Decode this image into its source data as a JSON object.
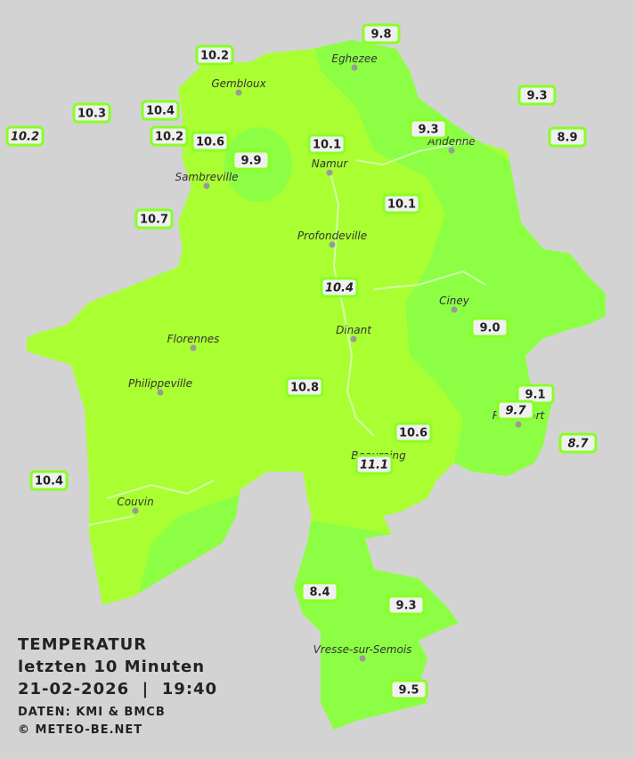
{
  "title": {
    "heading": "TEMPERATUR",
    "subtitle": "letzten 10 Minuten",
    "datetime": "21-02-2026  |  19:40",
    "source": "DATEN: KMI & BMCB",
    "copyright": "© METEO-BE.NET"
  },
  "towns": [
    "Eghezee",
    "Gembloux",
    "Andenne",
    "Namur",
    "Sambreville",
    "Profondeville",
    "Ciney",
    "Dinant",
    "Florennes",
    "Philippeville",
    "Rochefort",
    "Beauraing",
    "Couvin",
    "Vresse-sur-Semois"
  ],
  "stations": [
    {
      "value": "9.8",
      "italic": false
    },
    {
      "value": "10.2",
      "italic": false
    },
    {
      "value": "9.3",
      "italic": false
    },
    {
      "value": "10.3",
      "italic": false
    },
    {
      "value": "10.4",
      "italic": false
    },
    {
      "value": "9.3",
      "italic": false
    },
    {
      "value": "10.2",
      "italic": true
    },
    {
      "value": "10.2",
      "italic": false
    },
    {
      "value": "10.6",
      "italic": false
    },
    {
      "value": "10.1",
      "italic": false
    },
    {
      "value": "8.9",
      "italic": false
    },
    {
      "value": "9.9",
      "italic": false
    },
    {
      "value": "10.1",
      "italic": false
    },
    {
      "value": "10.7",
      "italic": false
    },
    {
      "value": "10.4",
      "italic": true
    },
    {
      "value": "9.0",
      "italic": false
    },
    {
      "value": "10.8",
      "italic": false
    },
    {
      "value": "9.1",
      "italic": false
    },
    {
      "value": "9.7",
      "italic": true
    },
    {
      "value": "10.6",
      "italic": false
    },
    {
      "value": "8.7",
      "italic": true
    },
    {
      "value": "11.1",
      "italic": true
    },
    {
      "value": "10.4",
      "italic": false
    },
    {
      "value": "8.4",
      "italic": false
    },
    {
      "value": "9.3",
      "italic": false
    },
    {
      "value": "9.5",
      "italic": false
    }
  ]
}
